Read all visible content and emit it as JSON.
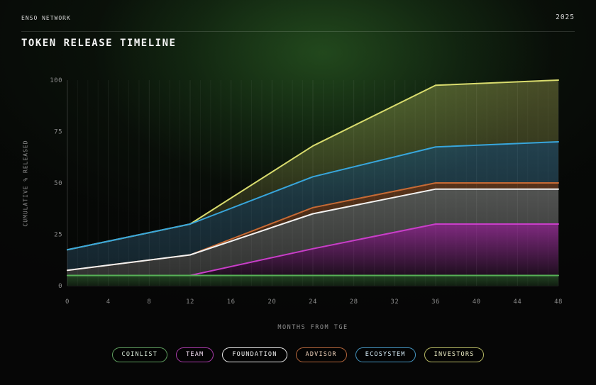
{
  "header": {
    "brand": "ENSO NETWORK",
    "year": "2025",
    "title": "TOKEN RELEASE TIMELINE"
  },
  "chart_data": {
    "type": "area",
    "stacked": true,
    "title": "TOKEN RELEASE TIMELINE",
    "xlabel": "MONTHS FROM TGE",
    "ylabel": "CUMULATIVE % RELEASED",
    "xlim": [
      0,
      48
    ],
    "ylim": [
      0,
      100
    ],
    "x_ticks": [
      0,
      4,
      8,
      12,
      16,
      20,
      24,
      28,
      32,
      36,
      40,
      44,
      48
    ],
    "y_ticks": [
      0,
      25,
      50,
      75,
      100
    ],
    "grid": "vertical-monthly",
    "legend_position": "bottom",
    "x": [
      0,
      12,
      24,
      36,
      48
    ],
    "series": [
      {
        "id": "coinlist",
        "name": "COINLIST",
        "color": "#57b257",
        "fill_top": "rgba(87,178,87,0.35)",
        "fill_bottom": "rgba(87,178,87,0.14)",
        "values": [
          5,
          5,
          5,
          5,
          5
        ]
      },
      {
        "id": "team",
        "name": "TEAM",
        "color": "#c93ec9",
        "fill_top": "rgba(201,62,201,0.62)",
        "fill_bottom": "rgba(201,62,201,0.13)",
        "values": [
          0,
          0,
          13,
          25,
          25
        ]
      },
      {
        "id": "foundation",
        "name": "FOUNDATION",
        "color": "#f2f2f2",
        "fill_top": "rgba(235,235,235,0.33)",
        "fill_bottom": "rgba(235,235,235,0.19)",
        "values": [
          2.5,
          10,
          17,
          17,
          17
        ]
      },
      {
        "id": "advisor",
        "name": "ADVISOR",
        "color": "#c66a35",
        "fill_top": "rgba(198,106,53,0.42)",
        "fill_bottom": "rgba(198,106,53,0.26)",
        "values": [
          0,
          0,
          3,
          3,
          3
        ]
      },
      {
        "id": "ecosystem",
        "name": "ECOSYSTEM",
        "color": "#38a6dc",
        "fill_top": "rgba(86,168,214,0.34)",
        "fill_bottom": "rgba(66,130,168,0.24)",
        "values": [
          10,
          15,
          15,
          17.5,
          20
        ]
      },
      {
        "id": "investors",
        "name": "INVESTORS",
        "color": "#d9dc6e",
        "fill_top": "rgba(217,220,110,0.30)",
        "fill_bottom": "rgba(217,220,110,0.10)",
        "values": [
          0,
          0,
          15,
          30,
          30
        ]
      }
    ],
    "cumulative_top_edges_pct": {
      "months": [
        0,
        12,
        24,
        36,
        48
      ],
      "coinlist": [
        5,
        5,
        5,
        5,
        5
      ],
      "team": [
        5,
        5,
        18,
        30,
        30
      ],
      "foundation": [
        7.5,
        15,
        35,
        47,
        47
      ],
      "advisor": [
        7.5,
        15,
        38,
        50,
        50
      ],
      "ecosystem": [
        17.5,
        30,
        53,
        67.5,
        70
      ],
      "investors": [
        17.5,
        30,
        68,
        97.5,
        100
      ]
    }
  },
  "legend": {
    "items": [
      {
        "id": "coinlist",
        "label": "COINLIST",
        "border_color": "#5f9e5f",
        "text_color": "#d9ead9"
      },
      {
        "id": "team",
        "label": "TEAM",
        "border_color": "#ab3bab",
        "text_color": "#f0dcf0"
      },
      {
        "id": "foundation",
        "label": "FOUNDATION",
        "border_color": "#e6e6e6",
        "text_color": "#f4f4f4"
      },
      {
        "id": "advisor",
        "label": "ADVISOR",
        "border_color": "#b5663b",
        "text_color": "#ecd0ba"
      },
      {
        "id": "ecosystem",
        "label": "ECOSYSTEM",
        "border_color": "#4596c2",
        "text_color": "#d6ecf8"
      },
      {
        "id": "investors",
        "label": "INVESTORS",
        "border_color": "#b8ba64",
        "text_color": "#eff0c8"
      }
    ]
  }
}
